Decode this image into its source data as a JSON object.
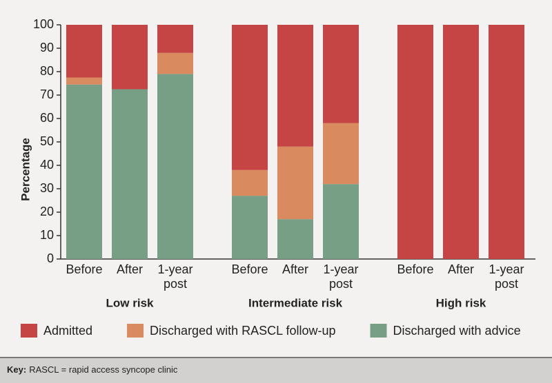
{
  "chart_data": {
    "type": "stacked_bar",
    "y_label": "Percentage",
    "categories": [
      "Before",
      "After",
      "1-year post",
      "Before",
      "After",
      "1-year post",
      "Before",
      "After",
      "1-year post"
    ],
    "groups": [
      "Low risk",
      "Intermediate risk",
      "High risk"
    ],
    "series": [
      {
        "name": "Admitted",
        "color": "#c54545",
        "values": [
          22.5,
          27.5,
          12,
          62,
          52,
          42,
          100,
          100,
          100
        ]
      },
      {
        "name": "Discharged with RASCL follow-up",
        "color": "#d98b5f",
        "values": [
          3,
          0,
          9,
          11,
          31,
          26,
          0,
          0,
          0
        ]
      },
      {
        "name": "Discharged with advice",
        "color": "#769f86",
        "values": [
          74.5,
          72.5,
          79,
          27,
          17,
          32,
          0,
          0,
          0
        ]
      }
    ],
    "ylim": [
      0,
      100
    ],
    "yticks": [
      0,
      10,
      20,
      30,
      40,
      50,
      60,
      70,
      80,
      90,
      100
    ]
  },
  "footer": {
    "key_label": "Key:",
    "text": "RASCL = rapid access syncope clinic"
  }
}
